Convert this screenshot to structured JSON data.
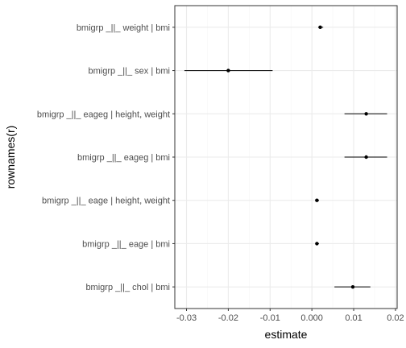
{
  "chart_data": {
    "type": "scatter",
    "title": "",
    "xlabel": "estimate",
    "ylabel": "rownames(r)",
    "xlim": [
      -0.0328,
      0.0204
    ],
    "xticks": [
      -0.03,
      -0.02,
      -0.01,
      0.0,
      0.01,
      0.02
    ],
    "xtick_labels": [
      "-0.03",
      "-0.02",
      "-0.01",
      "0.000",
      "0.01",
      "0.02"
    ],
    "grid": true,
    "error_bars": "horizontal",
    "categories": [
      "bmigrp _||_ weight | bmi",
      "bmigrp _||_ sex | bmi",
      "bmigrp _||_ eageg | height, weight",
      "bmigrp _||_ eageg | bmi",
      "bmigrp _||_ eage | height, weight",
      "bmigrp _||_ eage | bmi",
      "bmigrp _||_ chol | bmi"
    ],
    "estimate": [
      0.002,
      -0.02,
      0.013,
      0.013,
      0.0012,
      0.0012,
      0.0098
    ],
    "lower": [
      0.0015,
      -0.0305,
      0.0078,
      0.0078,
      0.0008,
      0.0008,
      0.0054
    ],
    "upper": [
      0.0027,
      -0.0094,
      0.018,
      0.018,
      0.0017,
      0.0017,
      0.014
    ],
    "colors": {
      "panel_border": "#333333",
      "grid_major": "#ebebeb",
      "grid_minor": "#f5f5f5",
      "marks": "#000000"
    }
  }
}
